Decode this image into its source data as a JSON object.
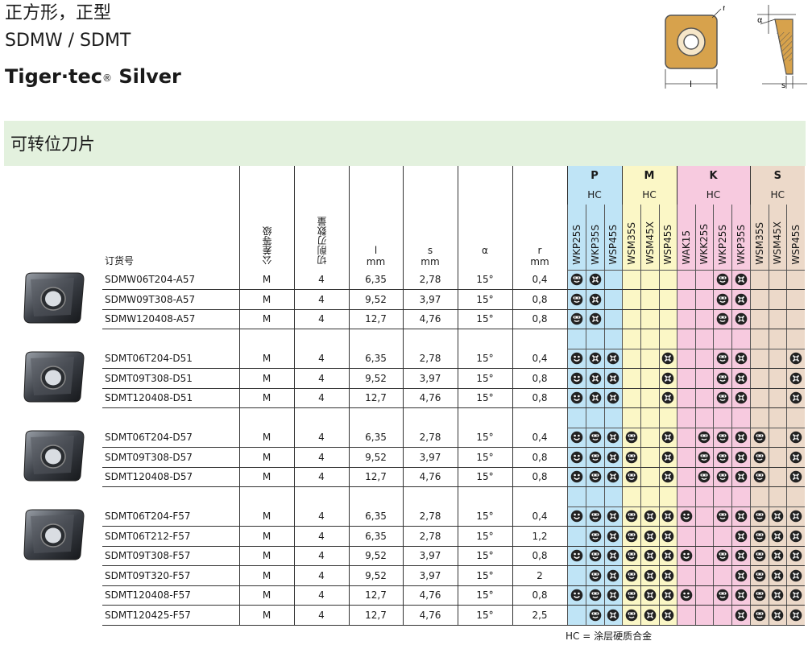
{
  "header": {
    "title_cn": "正方形，正型",
    "title_codes": "SDMW / SDMT",
    "brand": "Tiger·tec",
    "brand_mark": "®",
    "brand_suffix": " Silver"
  },
  "drawing": {
    "r_label": "r",
    "alpha_label": "α",
    "l_label": "l",
    "s_label": "s"
  },
  "section": {
    "title": "可转位刀片"
  },
  "columns": {
    "code": "订货号",
    "tolerance": "公差等级",
    "edges": "切削刃数量",
    "l": "l",
    "l_unit": "mm",
    "s": "s",
    "s_unit": "mm",
    "alpha": "α",
    "r": "r",
    "r_unit": "mm"
  },
  "grade_groups": [
    {
      "key": "P",
      "label": "P",
      "hc": "HC",
      "grades": [
        "WKP25S",
        "WKP35S",
        "WSP45S"
      ]
    },
    {
      "key": "M",
      "label": "M",
      "hc": "HC",
      "grades": [
        "WSM35S",
        "WSM45X",
        "WSP45S"
      ]
    },
    {
      "key": "K",
      "label": "K",
      "hc": "HC",
      "grades": [
        "WAK15",
        "WKK25S",
        "WKP25S",
        "WKP35S"
      ]
    },
    {
      "key": "S",
      "label": "S",
      "hc": "HC",
      "grades": [
        "WSM35S",
        "WSM45X",
        "WSP45S"
      ]
    }
  ],
  "colors": {
    "P": "#bfe4f6",
    "M": "#fbf7c6",
    "K": "#f7cadf",
    "S": "#ecd9c9"
  },
  "groups": [
    {
      "insert_icon": "insert-A57-image",
      "rows": [
        {
          "code": "SDMW06T204-A57",
          "tol": "M",
          "edges": "4",
          "l": "6,35",
          "s": "2,78",
          "alpha": "15°",
          "r": "0,4",
          "marks": [
            "b",
            "c",
            "",
            "",
            "",
            "",
            "",
            "",
            "b",
            "c",
            "",
            "",
            ""
          ]
        },
        {
          "code": "SDMW09T308-A57",
          "tol": "M",
          "edges": "4",
          "l": "9,52",
          "s": "3,97",
          "alpha": "15°",
          "r": "0,8",
          "marks": [
            "b",
            "c",
            "",
            "",
            "",
            "",
            "",
            "",
            "b",
            "c",
            "",
            "",
            ""
          ]
        },
        {
          "code": "SDMW120408-A57",
          "tol": "M",
          "edges": "4",
          "l": "12,7",
          "s": "4,76",
          "alpha": "15°",
          "r": "0,8",
          "marks": [
            "b",
            "c",
            "",
            "",
            "",
            "",
            "",
            "",
            "b",
            "c",
            "",
            "",
            ""
          ]
        }
      ]
    },
    {
      "insert_icon": "insert-D51-image",
      "rows": [
        {
          "code": "SDMT06T204-D51",
          "tol": "M",
          "edges": "4",
          "l": "6,35",
          "s": "2,78",
          "alpha": "15°",
          "r": "0,4",
          "marks": [
            "a",
            "c",
            "c",
            "",
            "",
            "c",
            "",
            "",
            "b",
            "c",
            "",
            "",
            "c"
          ]
        },
        {
          "code": "SDMT09T308-D51",
          "tol": "M",
          "edges": "4",
          "l": "9,52",
          "s": "3,97",
          "alpha": "15°",
          "r": "0,8",
          "marks": [
            "a",
            "c",
            "c",
            "",
            "",
            "c",
            "",
            "",
            "b",
            "c",
            "",
            "",
            "c"
          ]
        },
        {
          "code": "SDMT120408-D51",
          "tol": "M",
          "edges": "4",
          "l": "12,7",
          "s": "4,76",
          "alpha": "15°",
          "r": "0,8",
          "marks": [
            "a",
            "c",
            "c",
            "",
            "",
            "c",
            "",
            "",
            "b",
            "c",
            "",
            "",
            "c"
          ]
        }
      ]
    },
    {
      "insert_icon": "insert-D57-image",
      "rows": [
        {
          "code": "SDMT06T204-D57",
          "tol": "M",
          "edges": "4",
          "l": "6,35",
          "s": "2,78",
          "alpha": "15°",
          "r": "0,4",
          "marks": [
            "a",
            "b",
            "c",
            "b",
            "",
            "c",
            "",
            "b",
            "b",
            "c",
            "b",
            "",
            "c"
          ]
        },
        {
          "code": "SDMT09T308-D57",
          "tol": "M",
          "edges": "4",
          "l": "9,52",
          "s": "3,97",
          "alpha": "15°",
          "r": "0,8",
          "marks": [
            "a",
            "b",
            "c",
            "b",
            "",
            "c",
            "",
            "b",
            "b",
            "c",
            "b",
            "",
            "c"
          ]
        },
        {
          "code": "SDMT120408-D57",
          "tol": "M",
          "edges": "4",
          "l": "12,7",
          "s": "4,76",
          "alpha": "15°",
          "r": "0,8",
          "marks": [
            "a",
            "b",
            "c",
            "b",
            "",
            "c",
            "",
            "b",
            "b",
            "c",
            "b",
            "",
            "c"
          ]
        }
      ]
    },
    {
      "insert_icon": "insert-F57-image",
      "rows": [
        {
          "code": "SDMT06T204-F57",
          "tol": "M",
          "edges": "4",
          "l": "6,35",
          "s": "2,78",
          "alpha": "15°",
          "r": "0,4",
          "marks": [
            "a",
            "b",
            "c",
            "b",
            "c",
            "c",
            "a",
            "",
            "b",
            "c",
            "b",
            "c",
            "c"
          ]
        },
        {
          "code": "SDMT06T212-F57",
          "tol": "M",
          "edges": "4",
          "l": "6,35",
          "s": "2,78",
          "alpha": "15°",
          "r": "1,2",
          "marks": [
            "",
            "b",
            "c",
            "b",
            "c",
            "c",
            "",
            "",
            "",
            "c",
            "b",
            "c",
            "c"
          ]
        },
        {
          "code": "SDMT09T308-F57",
          "tol": "M",
          "edges": "4",
          "l": "9,52",
          "s": "3,97",
          "alpha": "15°",
          "r": "0,8",
          "marks": [
            "a",
            "b",
            "c",
            "b",
            "c",
            "c",
            "a",
            "",
            "b",
            "c",
            "b",
            "c",
            "c"
          ]
        },
        {
          "code": "SDMT09T320-F57",
          "tol": "M",
          "edges": "4",
          "l": "9,52",
          "s": "3,97",
          "alpha": "15°",
          "r": "2",
          "marks": [
            "",
            "b",
            "c",
            "b",
            "c",
            "c",
            "",
            "",
            "",
            "c",
            "b",
            "c",
            "c"
          ]
        },
        {
          "code": "SDMT120408-F57",
          "tol": "M",
          "edges": "4",
          "l": "12,7",
          "s": "4,76",
          "alpha": "15°",
          "r": "0,8",
          "marks": [
            "a",
            "b",
            "c",
            "b",
            "c",
            "c",
            "a",
            "",
            "b",
            "c",
            "b",
            "c",
            "c"
          ]
        },
        {
          "code": "SDMT120425-F57",
          "tol": "M",
          "edges": "4",
          "l": "12,7",
          "s": "4,76",
          "alpha": "15°",
          "r": "2,5",
          "marks": [
            "",
            "b",
            "c",
            "b",
            "c",
            "c",
            "",
            "",
            "",
            "c",
            "b",
            "c",
            "c"
          ]
        }
      ]
    }
  ],
  "footnote": "HC = 涂层硬质合金"
}
